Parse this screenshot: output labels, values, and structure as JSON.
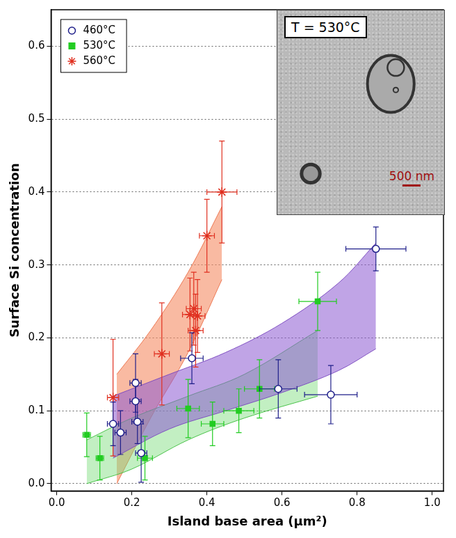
{
  "chart_data": {
    "type": "scatter",
    "x_label": "Island base area (µm²)",
    "y_label": "Surface Si concentration",
    "xlim": [
      -0.015,
      1.03
    ],
    "ylim": [
      -0.01,
      0.65
    ],
    "xticks": [
      {
        "value": 0,
        "label": "0.0"
      },
      0.2,
      0.4,
      0.6,
      0.8,
      {
        "value": 1,
        "label": "1.0"
      }
    ],
    "yticks": [
      {
        "value": 0,
        "label": "0.0"
      },
      0.1,
      0.2,
      0.3,
      0.4,
      0.5,
      0.6
    ],
    "grid": "y",
    "legend": "upper left",
    "series": [
      {
        "name": "460°C",
        "color": "#1f1f8a",
        "marker": "circle-open",
        "x": [
          0.15,
          0.17,
          0.21,
          0.21,
          0.215,
          0.225,
          0.36,
          0.59,
          0.73,
          0.85
        ],
        "values": [
          0.082,
          0.07,
          0.138,
          0.113,
          0.085,
          0.042,
          0.172,
          0.13,
          0.122,
          0.322
        ],
        "x_error": [
          0.015,
          0.015,
          0.015,
          0.015,
          0.015,
          0.015,
          0.03,
          0.05,
          0.07,
          0.08
        ],
        "y_error": [
          0.03,
          0.03,
          0.04,
          0.03,
          0.03,
          0.04,
          0.035,
          0.04,
          0.04,
          0.03
        ],
        "band": {
          "x": [
            0.15,
            0.3,
            0.45,
            0.6,
            0.75,
            0.85
          ],
          "lower": [
            0.035,
            0.075,
            0.1,
            0.125,
            0.155,
            0.185
          ],
          "upper": [
            0.12,
            0.15,
            0.18,
            0.22,
            0.275,
            0.33
          ]
        }
      },
      {
        "name": "530°C",
        "color": "#22cc22",
        "marker": "square",
        "x": [
          0.08,
          0.115,
          0.235,
          0.35,
          0.415,
          0.485,
          0.54,
          0.695
        ],
        "values": [
          0.067,
          0.035,
          0.035,
          0.103,
          0.082,
          0.1,
          0.13,
          0.25
        ],
        "x_error": [
          0.01,
          0.01,
          0.02,
          0.03,
          0.03,
          0.04,
          0.04,
          0.05
        ],
        "y_error": [
          0.03,
          0.03,
          0.03,
          0.04,
          0.03,
          0.03,
          0.04,
          0.04
        ],
        "band": {
          "x": [
            0.08,
            0.2,
            0.35,
            0.5,
            0.695
          ],
          "lower": [
            0.0,
            0.02,
            0.06,
            0.09,
            0.12
          ],
          "upper": [
            0.06,
            0.09,
            0.12,
            0.15,
            0.21
          ]
        }
      },
      {
        "name": "560°C",
        "color": "#e03020",
        "marker": "asterisk",
        "x": [
          0.15,
          0.28,
          0.355,
          0.365,
          0.37,
          0.375,
          0.4,
          0.44
        ],
        "values": [
          0.118,
          0.178,
          0.232,
          0.24,
          0.21,
          0.23,
          0.34,
          0.4
        ],
        "x_error": [
          0.015,
          0.02,
          0.02,
          0.02,
          0.02,
          0.02,
          0.02,
          0.04
        ],
        "y_error": [
          0.08,
          0.07,
          0.05,
          0.05,
          0.05,
          0.05,
          0.05,
          0.07
        ],
        "band": {
          "x": [
            0.16,
            0.25,
            0.35,
            0.44
          ],
          "lower": [
            0.0,
            0.09,
            0.18,
            0.28
          ],
          "upper": [
            0.15,
            0.21,
            0.29,
            0.38
          ]
        }
      }
    ],
    "inset": {
      "title": "T = 530°C",
      "scale_label": "500 nm",
      "x": [
        0.585,
        1.03
      ],
      "y": [
        0.37,
        0.65
      ]
    }
  }
}
